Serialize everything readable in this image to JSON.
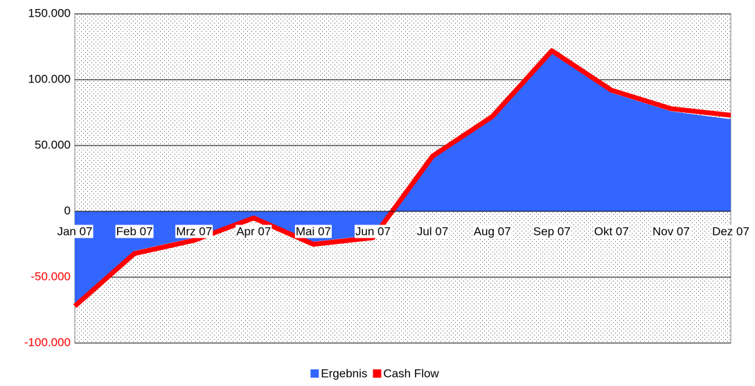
{
  "chart_data": {
    "type": "area",
    "categories": [
      "Jan 07",
      "Feb 07",
      "Mrz 07",
      "Apr 07",
      "Mai 07",
      "Jun 07",
      "Jul 07",
      "Aug 07",
      "Sep 07",
      "Okt 07",
      "Nov 07",
      "Dez 07"
    ],
    "series": [
      {
        "name": "Ergebnis",
        "color": "#3366ff",
        "values": [
          -70000,
          -30000,
          -20000,
          -5000,
          -23000,
          -18000,
          40000,
          70000,
          120000,
          90000,
          76000,
          70000
        ]
      },
      {
        "name": "Cash Flow",
        "color": "#ff0000",
        "values": [
          -72000,
          -32000,
          -22000,
          -5000,
          -25000,
          -20000,
          42000,
          72000,
          122000,
          92000,
          78000,
          73000
        ]
      }
    ],
    "ylim": [
      -100000,
      150000
    ],
    "yticks": [
      {
        "value": -100000,
        "label": "-100.000"
      },
      {
        "value": -50000,
        "label": "-50.000"
      },
      0,
      {
        "value": 50000,
        "label": "50.000"
      },
      {
        "value": 100000,
        "label": "100.000"
      },
      {
        "value": 150000,
        "label": "150.000"
      }
    ],
    "negative_tick_color": "#ff0000",
    "grid": true,
    "legend": "bottom"
  }
}
